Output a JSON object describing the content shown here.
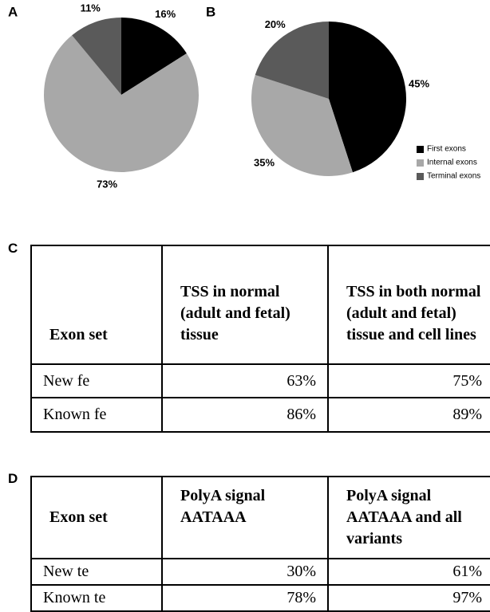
{
  "chart_data": [
    {
      "type": "pie",
      "panel": "A",
      "values": [
        16,
        73,
        11
      ],
      "value_labels": [
        "16%",
        "73%",
        "11%"
      ],
      "colors": [
        "#000000",
        "#a8a8a8",
        "#5a5a5a"
      ]
    },
    {
      "type": "pie",
      "panel": "B",
      "categories": [
        "First exons",
        "Internal exons",
        "Terminal exons"
      ],
      "values": [
        45,
        35,
        20
      ],
      "value_labels": [
        "45%",
        "35%",
        "20%"
      ],
      "colors": [
        "#000000",
        "#a8a8a8",
        "#5a5a5a"
      ],
      "legend": "lower right"
    }
  ],
  "tables": [
    {
      "panel": "C",
      "header": [
        "Exon set",
        "TSS in normal (adult and fetal) tissue",
        "TSS in both normal (adult and fetal) tissue and cell lines"
      ],
      "rows": [
        [
          "New fe",
          "63%",
          "75%"
        ],
        [
          "Known fe",
          "86%",
          "89%"
        ]
      ]
    },
    {
      "panel": "D",
      "header": [
        "Exon set",
        "PolyA signal AATAAA",
        "PolyA signal AATAAA and all variants"
      ],
      "rows": [
        [
          "New te",
          "30%",
          "61%"
        ],
        [
          "Known te",
          "78%",
          "97%"
        ]
      ]
    }
  ]
}
